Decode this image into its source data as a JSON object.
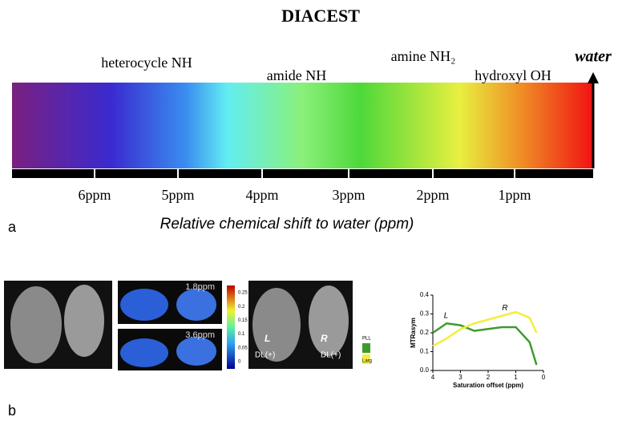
{
  "panel_a": {
    "label": "a",
    "title": "DIACEST",
    "water": "water",
    "groups": [
      "heterocycle NH",
      "amide NH",
      "amine NH₂",
      "hydroxyl OH"
    ],
    "ppm_labels": [
      "6ppm",
      "5ppm",
      "4ppm",
      "3ppm",
      "2ppm",
      "1ppm"
    ],
    "axis_label": "Relative chemical shift to water (ppm)"
  },
  "panel_b": {
    "label": "b",
    "map_labels": [
      "1.8ppm",
      "3.6ppm"
    ],
    "colorbar_ticks": [
      0.25,
      0.2,
      0.15,
      0.1,
      0.05,
      0
    ],
    "side_labels": [
      "L",
      "R"
    ],
    "dl_labels": [
      "DL(+)",
      "DL(+)"
    ]
  },
  "chart_data": {
    "type": "line",
    "x_label": "Saturation offset (ppm)",
    "y_label": "MTRasym",
    "x": [
      4,
      3.5,
      3,
      2.5,
      2,
      1.5,
      1,
      0.5,
      0.25
    ],
    "series": [
      {
        "name": "PLL",
        "color": "#3f9a2e",
        "values": [
          0.2,
          0.25,
          0.24,
          0.21,
          0.22,
          0.23,
          0.23,
          0.15,
          0.03
        ]
      },
      {
        "name": "Larg",
        "color": "#f2ee3a",
        "values": [
          0.13,
          0.17,
          0.22,
          0.25,
          0.27,
          0.29,
          0.31,
          0.28,
          0.2
        ]
      }
    ],
    "xlim": [
      4,
      0
    ],
    "xticks": [
      4,
      3,
      2,
      1,
      0
    ],
    "ylim": [
      0,
      0.4
    ],
    "yticks": [
      {
        "value": 0,
        "label": "0.0"
      },
      0.1,
      0.2,
      0.3,
      0.4
    ],
    "annotations": [
      "L",
      "R"
    ]
  }
}
